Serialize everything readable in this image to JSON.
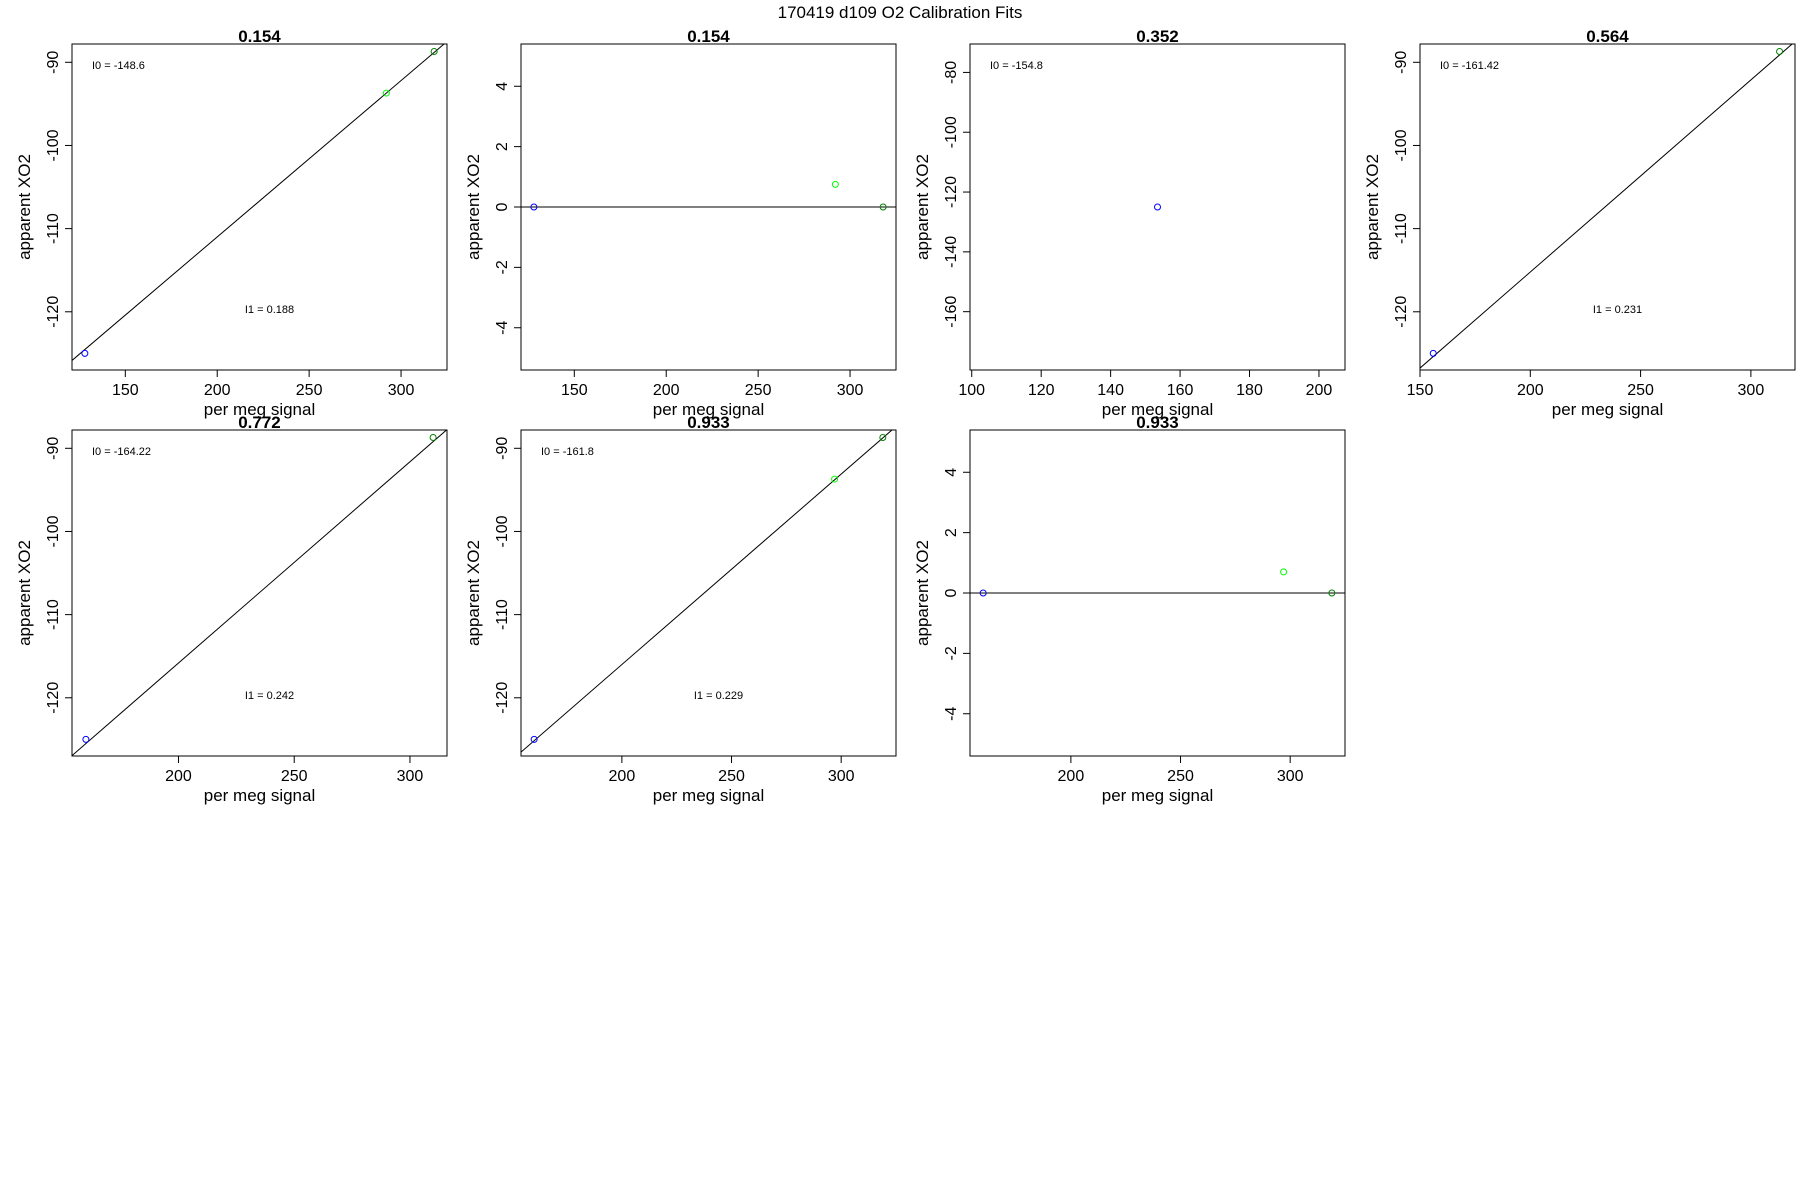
{
  "figure_title": "170419   d109   O2 Calibration Fits",
  "chart_data": [
    {
      "type": "scatter",
      "title": "0.154",
      "xlabel": "per meg signal",
      "ylabel": "apparent XO2",
      "xlim": [
        121,
        325
      ],
      "ylim": [
        -127,
        -87.8
      ],
      "xticks": [
        150,
        200,
        250,
        300
      ],
      "yticks": [
        -120,
        -110,
        -100,
        -90
      ],
      "fit_line": {
        "intercept_label": "I0 =  -148.6",
        "slope_label": "I1 =  0.188",
        "intercept": -148.6,
        "slope": 0.188
      },
      "points": [
        {
          "x": 128,
          "y": -125,
          "color": "#0000ff"
        },
        {
          "x": 292,
          "y": -93.7,
          "color": "#00ff00"
        },
        {
          "x": 318,
          "y": -88.7,
          "color": "#008000"
        }
      ]
    },
    {
      "type": "scatter",
      "title": "0.154",
      "xlabel": "per meg signal",
      "ylabel": "apparent XO2",
      "xlim": [
        121,
        325
      ],
      "ylim": [
        -5.4,
        5.4
      ],
      "xticks": [
        150,
        200,
        250,
        300
      ],
      "yticks": [
        -4,
        -2,
        0,
        2,
        4
      ],
      "hline": 0,
      "points": [
        {
          "x": 128,
          "y": 0,
          "color": "#0000ff"
        },
        {
          "x": 292,
          "y": 0.75,
          "color": "#00ff00"
        },
        {
          "x": 318,
          "y": 0,
          "color": "#008000"
        }
      ]
    },
    {
      "type": "scatter",
      "title": "0.352",
      "xlabel": "per meg signal",
      "ylabel": "apparent XO2",
      "xlim": [
        99.5,
        207.5
      ],
      "ylim": [
        -179.5,
        -70.5
      ],
      "xticks": [
        100,
        120,
        140,
        160,
        180,
        200
      ],
      "yticks": [
        -160,
        -140,
        -120,
        -100,
        -80
      ],
      "fit_line": {
        "intercept_label": "I0 =  -154.8"
      },
      "points": [
        {
          "x": 153.5,
          "y": -125,
          "color": "#0000ff"
        }
      ]
    },
    {
      "type": "scatter",
      "title": "0.564",
      "xlabel": "per meg signal",
      "ylabel": "apparent XO2",
      "xlim": [
        150,
        320
      ],
      "ylim": [
        -127,
        -87.8
      ],
      "xticks": [
        150,
        200,
        250,
        300
      ],
      "yticks": [
        -120,
        -110,
        -100,
        -90
      ],
      "fit_line": {
        "intercept_label": "I0 =  -161.42",
        "slope_label": "I1 =  0.231",
        "intercept": -161.42,
        "slope": 0.231
      },
      "points": [
        {
          "x": 156,
          "y": -125,
          "color": "#0000ff"
        },
        {
          "x": 313,
          "y": -88.7,
          "color": "#008000"
        }
      ]
    },
    {
      "type": "scatter",
      "title": "0.772",
      "xlabel": "per meg signal",
      "ylabel": "apparent XO2",
      "xlim": [
        154,
        316
      ],
      "ylim": [
        -127,
        -87.8
      ],
      "xticks": [
        200,
        250,
        300
      ],
      "yticks": [
        -120,
        -110,
        -100,
        -90
      ],
      "fit_line": {
        "intercept_label": "I0 =  -164.22",
        "slope_label": "I1 =  0.242",
        "intercept": -164.22,
        "slope": 0.242
      },
      "points": [
        {
          "x": 160,
          "y": -125,
          "color": "#0000ff"
        },
        {
          "x": 310,
          "y": -88.7,
          "color": "#008000"
        }
      ]
    },
    {
      "type": "scatter",
      "title": "0.933",
      "xlabel": "per meg signal",
      "ylabel": "apparent XO2",
      "xlim": [
        154,
        325
      ],
      "ylim": [
        -127,
        -87.8
      ],
      "xticks": [
        200,
        250,
        300
      ],
      "yticks": [
        -120,
        -110,
        -100,
        -90
      ],
      "fit_line": {
        "intercept_label": "I0 =  -161.8",
        "slope_label": "I1 =  0.229",
        "intercept": -161.8,
        "slope": 0.229
      },
      "points": [
        {
          "x": 160,
          "y": -125,
          "color": "#0000ff"
        },
        {
          "x": 297,
          "y": -93.7,
          "color": "#00ff00"
        },
        {
          "x": 319,
          "y": -88.7,
          "color": "#008000"
        }
      ]
    },
    {
      "type": "scatter",
      "title": "0.933",
      "xlabel": "per meg signal",
      "ylabel": "apparent XO2",
      "xlim": [
        154,
        325
      ],
      "ylim": [
        -5.4,
        5.4
      ],
      "xticks": [
        200,
        250,
        300
      ],
      "yticks": [
        -4,
        -2,
        0,
        2,
        4
      ],
      "hline": 0,
      "points": [
        {
          "x": 160,
          "y": 0,
          "color": "#0000ff"
        },
        {
          "x": 297,
          "y": 0.7,
          "color": "#00ff00"
        },
        {
          "x": 319,
          "y": 0,
          "color": "#008000"
        }
      ]
    }
  ]
}
